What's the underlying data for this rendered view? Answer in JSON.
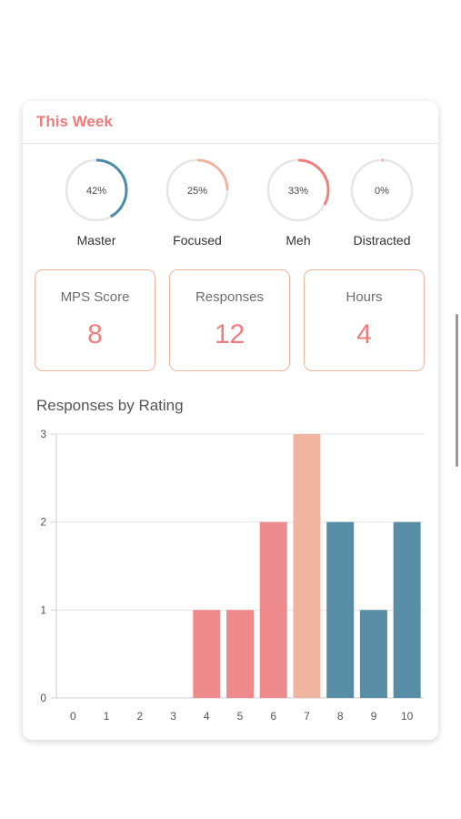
{
  "card": {
    "title": "This Week"
  },
  "rings": [
    {
      "label": "Master",
      "percent_text": "42%",
      "value": 0.42,
      "color": "#4d8aa6"
    },
    {
      "label": "Focused",
      "percent_text": "25%",
      "value": 0.25,
      "color": "#f0b5a0"
    },
    {
      "label": "Meh",
      "percent_text": "33%",
      "value": 0.33,
      "color": "#ef8080"
    },
    {
      "label": "Distracted",
      "percent_text": "0%",
      "value": 0.0,
      "color": "#ef8080"
    }
  ],
  "stats": [
    {
      "label": "MPS Score",
      "value": "8"
    },
    {
      "label": "Responses",
      "value": "12"
    },
    {
      "label": "Hours",
      "value": "4"
    }
  ],
  "chart_data": {
    "type": "bar",
    "title": "Responses by Rating",
    "categories": [
      "0",
      "1",
      "2",
      "3",
      "4",
      "5",
      "6",
      "7",
      "8",
      "9",
      "10"
    ],
    "values": [
      0,
      0,
      0,
      0,
      1,
      1,
      2,
      3,
      2,
      1,
      2
    ],
    "colors": [
      "#ef8a8c",
      "#ef8a8c",
      "#ef8a8c",
      "#ef8a8c",
      "#ef8a8c",
      "#ef8a8c",
      "#ef8a8c",
      "#f0b5a0",
      "#578ea6",
      "#578ea6",
      "#578ea6"
    ],
    "ylim": [
      0,
      3
    ],
    "yticks": [
      "0",
      "1",
      "2",
      "3"
    ],
    "grid": true
  }
}
